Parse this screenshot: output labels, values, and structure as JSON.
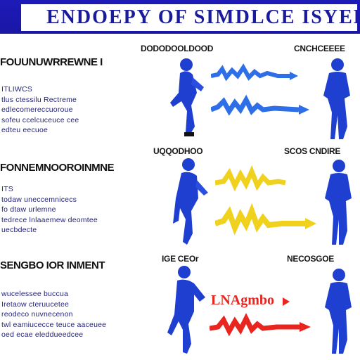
{
  "header": {
    "title": "ENDOEPY OF SIMDLCE ISYEE",
    "bar_color": "#1d1ab8",
    "title_color": "#1a1a9c"
  },
  "sections": [
    {
      "heading": "FOUUNUWRREWNE I",
      "left_label": "DODODOOLDOOD",
      "right_label": "CNCHCEEEE",
      "bullets": [
        "ITLIWCS",
        "tlus ctessilu Rectreme",
        "edlecomereccuoroue",
        "sofeu ccelcuceuce cee",
        "edteu eecuoe"
      ],
      "arrow_color": "#2e6fe8"
    },
    {
      "heading": "FONNEMNOOROINMNE",
      "left_label": "UQQODHOO",
      "right_label": "SCOS CNDIRE",
      "bullets": [
        "ITS",
        "todaw uneccemnicecs",
        "fo dtaw urlemne",
        "tedrece lnlaaemew deomtee",
        "uecbdecte"
      ],
      "arrow_color": "#f0d21e"
    },
    {
      "heading": "SENGBO IOR INMENT",
      "left_label": "IGE CEOr",
      "right_label": "NECOSGOE",
      "bullets": [
        "wucelessee buccua",
        "Iretaow cteruucetee",
        "reodeco nuvnecenon",
        "twl eamiucecce teuce aaceuee",
        "oed ecae eleddueedcee"
      ],
      "arrow_text": "LNAgmbo",
      "arrow_color": "#e8251e"
    }
  ],
  "figure_color": "#1f3fd1"
}
